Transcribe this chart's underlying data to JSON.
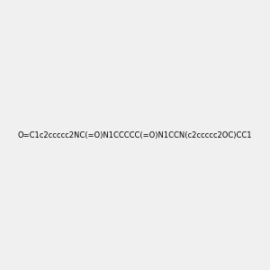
{
  "smiles": "O=C1c2ccccc2NC(=O)N1CCCCC(=O)N1CCN(c2ccccc2OC)CC1",
  "image_size": 300,
  "background_color": "#f0f0f0",
  "bond_color": "#000000",
  "atom_colors": {
    "N": "#0000ff",
    "O": "#ff0000",
    "C": "#000000"
  },
  "title": ""
}
